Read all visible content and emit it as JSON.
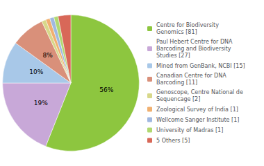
{
  "chart_data": {
    "type": "pie",
    "categories": [
      "Centre for Biodiversity\nGenomics [81]",
      "Paul Hebert Centre for DNA\nBarcoding and Biodiversity\nStudies [27]",
      "Mined from GenBank, NCBI [15]",
      "Canadian Centre for DNA\nBarcoding [11]",
      "Genoscope, Centre National de\nSequencage [2]",
      "Zoological Survey of India [1]",
      "Wellcome Sanger Institute [1]",
      "University of Madras [1]",
      "5 Others [5]"
    ],
    "values": [
      56,
      19,
      10,
      8,
      1,
      1,
      1,
      1,
      3
    ],
    "value_labels": [
      "56%",
      "19%",
      "10%",
      "8%",
      null,
      null,
      null,
      null,
      null
    ],
    "colors": [
      "#8dc63f",
      "#c8a8d8",
      "#a8c8e8",
      "#d9907a",
      "#d8d88a",
      "#f0b070",
      "#a0b8e0",
      "#b0d870",
      "#d86858"
    ],
    "data_labels": true,
    "legend": "right"
  }
}
